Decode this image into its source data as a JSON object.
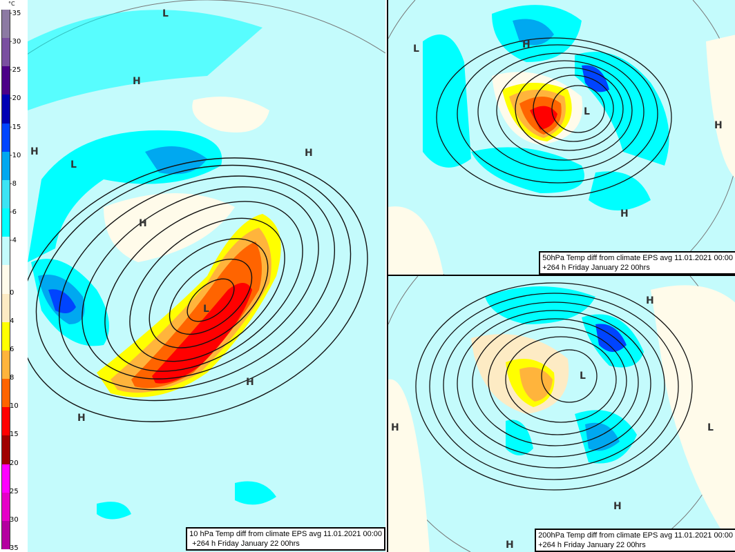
{
  "colorbar": {
    "unit": "°C",
    "labels": [
      "-35",
      "-30",
      "-25",
      "-20",
      "-15",
      "-10",
      "-8",
      "-6",
      "-4",
      "0",
      "4",
      "6",
      "8",
      "10",
      "15",
      "20",
      "25",
      "30",
      "35"
    ],
    "colors": [
      "#8c7aa3",
      "#7a4fa0",
      "#4c0088",
      "#0000b4",
      "#0044ff",
      "#00a8f0",
      "#3ce4f4",
      "#00ffff",
      "#c4fbfc",
      "#fffbea",
      "#fdebc4",
      "#ffff00",
      "#ffb43c",
      "#ff6400",
      "#ff0000",
      "#a00000",
      "#ff00ff",
      "#e600c8",
      "#b400a0"
    ]
  },
  "panels": {
    "main": {
      "caption_line1": "10 hPa Temp diff from climate EPS avg 11.01.2021 00:00",
      "caption_line2": "+264 h Friday January 22 00hrs",
      "pressure_labels": [
        "L",
        "H",
        "H",
        "L",
        "H",
        "H",
        "L",
        "H",
        "H"
      ]
    },
    "top_right": {
      "caption_line1": "50hPa Temp diff from climate EPS avg 11.01.2021 00:00",
      "caption_line2": "+264 h Friday January 22 00hrs",
      "pressure_labels": [
        "L",
        "H",
        "L",
        "H",
        "H"
      ]
    },
    "bottom_right": {
      "caption_line1": "200hPa Temp diff from climate EPS avg 11.01.2021 00:00",
      "caption_line2": "+264 h Friday January 22 00hrs",
      "pressure_labels": [
        "H",
        "L",
        "H",
        "L",
        "H",
        "H"
      ]
    }
  }
}
